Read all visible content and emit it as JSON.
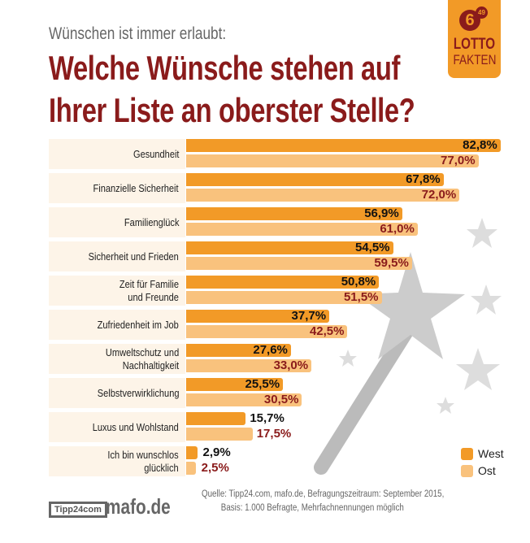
{
  "subtitle": "Wünschen ist immer erlaubt:",
  "title_line1": "Welche Wünsche stehen auf",
  "title_line2": "Ihrer Liste an oberster Stelle?",
  "logo": {
    "number": "6",
    "small": "49",
    "line1": "LOTTO",
    "line2": "FAKTEN"
  },
  "colors": {
    "west": "#f29a27",
    "ost": "#f9c27d",
    "title": "#8a1b1b"
  },
  "chart_data": {
    "type": "bar",
    "orientation": "horizontal",
    "categories": [
      "Gesundheit",
      "Finanzielle Sicherheit",
      "Familienglück",
      "Sicherheit und Frieden",
      "Zeit für Familie und Freunde",
      "Zufriedenheit im Job",
      "Umweltschutz und Nachhaltigkeit",
      "Selbstverwirklichung",
      "Luxus und Wohlstand",
      "Ich bin wunschlos glücklich"
    ],
    "series": [
      {
        "name": "West",
        "values": [
          82.8,
          67.8,
          56.9,
          54.5,
          50.8,
          37.7,
          27.6,
          25.5,
          15.7,
          2.9
        ],
        "labels": [
          "82,8%",
          "67,8%",
          "56,9%",
          "54,5%",
          "50,8%",
          "37,7%",
          "27,6%",
          "25,5%",
          "15,7%",
          "2,9%"
        ]
      },
      {
        "name": "Ost",
        "values": [
          77.0,
          72.0,
          61.0,
          59.5,
          51.5,
          42.5,
          33.0,
          30.5,
          17.5,
          2.5
        ],
        "labels": [
          "77,0%",
          "72,0%",
          "61,0%",
          "59,5%",
          "51,5%",
          "42,5%",
          "33,0%",
          "30,5%",
          "17,5%",
          "2,5%"
        ]
      }
    ],
    "legend": "bottom-right",
    "unit": "%"
  },
  "footer": {
    "logo1": "Tipp24com",
    "logo2": "mafo.de",
    "source_line1": "Quelle: Tipp24.com, mafo.de, Befragungszeitraum: September 2015,",
    "source_line2": "Basis: 1.000 Befragte, Mehrfachnennungen möglich"
  }
}
